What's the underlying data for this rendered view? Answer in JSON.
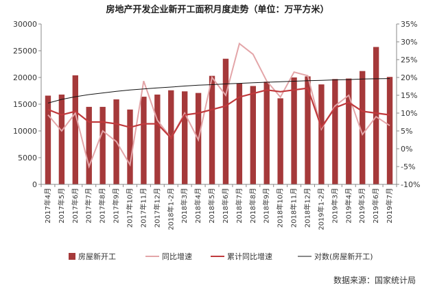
{
  "chart_data": {
    "type": "bar",
    "title": "房地产开发企业新开工面积月度走势（单位：万平方米）",
    "source": "数据来源：国家统计局",
    "categories": [
      "2017年4月",
      "2017年5月",
      "2017年6月",
      "2017年7月",
      "2017年8月",
      "2017年9月",
      "2017年10月",
      "2017年11月",
      "2017年12月",
      "2018年1-2月",
      "2018年3月",
      "2018年4月",
      "2018年5月",
      "2018年6月",
      "2018年7月",
      "2018年8月",
      "2018年9月",
      "2018年10月",
      "2018年11月",
      "2018年12月",
      "2019年1-2月",
      "2019年3月",
      "2019年4月",
      "2019年5月",
      "2019年6月",
      "2019年7月"
    ],
    "ylim_left": [
      0,
      30000
    ],
    "yticks_left": [
      0,
      5000,
      10000,
      15000,
      20000,
      25000,
      30000
    ],
    "ylim_right": [
      -10,
      35
    ],
    "yticks_right": [
      -10,
      -5,
      0,
      5,
      10,
      15,
      20,
      25,
      30,
      35
    ],
    "yticks_right_labels": [
      "-10%",
      "-5%",
      "0%",
      "5%",
      "10%",
      "15%",
      "20%",
      "25%",
      "30%",
      "35%"
    ],
    "grid": false,
    "legend_position": "bottom",
    "series": [
      {
        "name": "房屋新开工",
        "type": "bar",
        "axis": "left",
        "color": "#a5393a",
        "values": [
          16600,
          16800,
          20400,
          14500,
          14500,
          15900,
          14000,
          16400,
          16800,
          17600,
          17400,
          17100,
          20300,
          23500,
          18900,
          18400,
          19200,
          16100,
          20000,
          20200,
          18700,
          19700,
          19800,
          21200,
          25700,
          20100
        ]
      },
      {
        "name": "同比增速",
        "type": "line",
        "axis": "right",
        "color": "#e3a5a8",
        "values": [
          9.5,
          5.0,
          10.0,
          -5.0,
          5.0,
          2.0,
          -4.5,
          19.0,
          8.0,
          3.0,
          10.0,
          2.5,
          20.0,
          15.0,
          29.5,
          26.5,
          19.0,
          14.5,
          21.5,
          20.5,
          5.5,
          12.0,
          15.0,
          4.0,
          9.0,
          6.5
        ]
      },
      {
        "name": "累计同比增速",
        "type": "line",
        "axis": "right",
        "color": "#c0393c",
        "values": [
          11.0,
          9.5,
          10.5,
          7.5,
          7.5,
          7.0,
          6.0,
          7.0,
          7.0,
          3.0,
          9.5,
          10.0,
          11.0,
          12.0,
          14.5,
          15.5,
          16.5,
          16.0,
          16.5,
          17.0,
          6.0,
          11.5,
          13.0,
          10.5,
          10.0,
          9.5
        ]
      },
      {
        "name": "对数(房屋新开工)",
        "type": "trend",
        "axis": "left",
        "color": "#111111",
        "values": [
          15200,
          15900,
          16400,
          16800,
          17100,
          17400,
          17650,
          17850,
          18050,
          18200,
          18400,
          18550,
          18650,
          18800,
          18900,
          19000,
          19100,
          19200,
          19300,
          19400,
          19450,
          19550,
          19600,
          19700,
          19750,
          19800
        ]
      }
    ]
  }
}
